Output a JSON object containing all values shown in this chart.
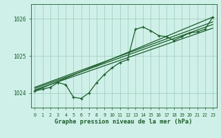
{
  "title": "Graphe pression niveau de la mer (hPa)",
  "bg_color": "#cff0e8",
  "grid_color": "#99ccbb",
  "line_color": "#1a5c2a",
  "x_ticks": [
    0,
    1,
    2,
    3,
    4,
    5,
    6,
    7,
    8,
    9,
    10,
    11,
    12,
    13,
    14,
    15,
    16,
    17,
    18,
    19,
    20,
    21,
    22,
    23
  ],
  "y_ticks": [
    1024,
    1025,
    1026
  ],
  "ylim": [
    1023.6,
    1026.4
  ],
  "xlim": [
    -0.5,
    23.5
  ],
  "main_x": [
    0,
    1,
    2,
    3,
    4,
    5,
    6,
    7,
    8,
    9,
    10,
    11,
    12,
    13,
    14,
    15,
    16,
    17,
    18,
    19,
    20,
    21,
    22,
    23
  ],
  "main_y": [
    1024.05,
    1024.1,
    1024.15,
    1024.28,
    1024.22,
    1023.88,
    1023.85,
    1024.0,
    1024.28,
    1024.5,
    1024.68,
    1024.82,
    1024.9,
    1025.72,
    1025.78,
    1025.68,
    1025.55,
    1025.52,
    1025.42,
    1025.52,
    1025.62,
    1025.65,
    1025.72,
    1026.05
  ],
  "line2_x": [
    0,
    23
  ],
  "line2_y": [
    1024.05,
    1026.05
  ],
  "line3_x": [
    0,
    23
  ],
  "line3_y": [
    1024.15,
    1025.92
  ],
  "line4_x": [
    0,
    23
  ],
  "line4_y": [
    1024.08,
    1025.75
  ],
  "line5_x": [
    0,
    23
  ],
  "line5_y": [
    1024.12,
    1025.85
  ]
}
